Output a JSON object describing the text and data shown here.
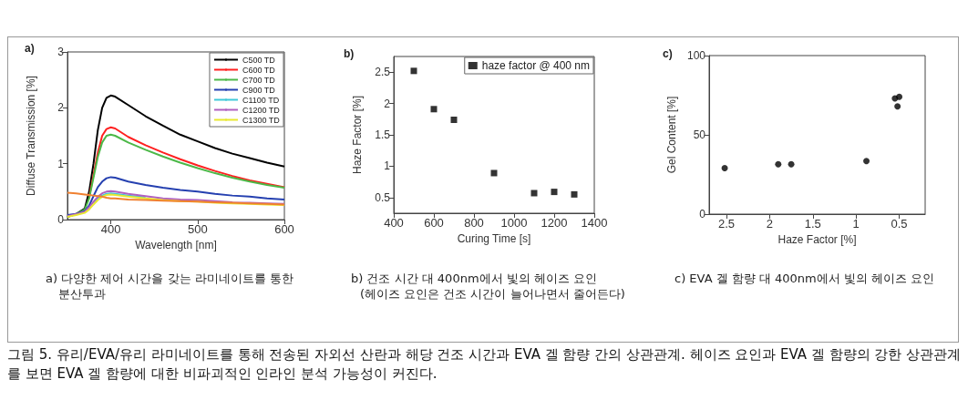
{
  "chart_data": [
    {
      "type": "line",
      "title": "a)",
      "xlabel": "Wavelength [nm]",
      "ylabel": "Diffuse Transmission [%]",
      "x": [
        350,
        360,
        370,
        375,
        380,
        385,
        390,
        395,
        400,
        405,
        420,
        440,
        460,
        480,
        500,
        520,
        540,
        560,
        580,
        600
      ],
      "series": [
        {
          "name": "C500 TD",
          "color": "#000000",
          "values": [
            0.05,
            0.1,
            0.2,
            0.5,
            1.0,
            1.6,
            2.0,
            2.18,
            2.22,
            2.2,
            2.05,
            1.85,
            1.68,
            1.52,
            1.4,
            1.28,
            1.18,
            1.1,
            1.02,
            0.95
          ]
        },
        {
          "name": "C600 TD",
          "color": "#ff2020",
          "values": [
            null,
            null,
            null,
            0.4,
            0.8,
            1.2,
            1.5,
            1.62,
            1.65,
            1.63,
            1.48,
            1.33,
            1.2,
            1.08,
            0.97,
            0.87,
            0.78,
            0.7,
            0.64,
            0.58
          ]
        },
        {
          "name": "C700 TD",
          "color": "#4cb848",
          "values": [
            0.05,
            0.1,
            0.18,
            0.38,
            0.75,
            1.12,
            1.38,
            1.5,
            1.52,
            1.5,
            1.38,
            1.25,
            1.13,
            1.02,
            0.92,
            0.83,
            0.75,
            0.68,
            0.62,
            0.57
          ]
        },
        {
          "name": "C900 TD",
          "color": "#2540b0",
          "values": [
            0.08,
            0.1,
            0.15,
            0.25,
            0.42,
            0.58,
            0.68,
            0.74,
            0.76,
            0.75,
            0.68,
            0.62,
            0.57,
            0.53,
            0.5,
            0.46,
            0.43,
            0.41,
            0.38,
            0.36
          ]
        },
        {
          "name": "C1100 TD",
          "color": "#40c8d8",
          "values": [
            null,
            null,
            null,
            null,
            0.3,
            0.38,
            0.43,
            0.46,
            0.47,
            0.46,
            0.43,
            0.4,
            null,
            null,
            null,
            null,
            null,
            null,
            null,
            null
          ]
        },
        {
          "name": "C1200 TD",
          "color": "#b060c0",
          "values": [
            0.06,
            0.1,
            0.14,
            0.22,
            0.32,
            0.41,
            0.47,
            0.5,
            0.51,
            0.5,
            0.46,
            0.42,
            0.38,
            0.36,
            0.35,
            0.33,
            0.31,
            0.3,
            0.29,
            0.28
          ]
        },
        {
          "name": "C1300 TD",
          "color": "#e8e830",
          "values": [
            0.05,
            0.08,
            0.12,
            0.18,
            0.27,
            0.35,
            0.41,
            0.44,
            0.45,
            0.44,
            0.41,
            0.38,
            0.35,
            0.33,
            0.32,
            0.3,
            0.29,
            0.28,
            0.27,
            0.26
          ]
        },
        {
          "color": "#f08030",
          "values": [
            0.48,
            0.47,
            0.45,
            0.44,
            0.43,
            0.42,
            0.41,
            0.39,
            0.38,
            0.38,
            0.36,
            0.35,
            0.34,
            0.33,
            0.32,
            0.31,
            0.3,
            0.29,
            0.28,
            0.27
          ]
        }
      ],
      "xlim": [
        350,
        600
      ],
      "xticks": [
        400,
        500,
        600
      ],
      "ylim": [
        0,
        3
      ],
      "yticks": [
        0,
        1,
        2,
        3
      ],
      "legend": "top right",
      "marker": "none",
      "line_style": "solid",
      "grid": false,
      "annotations": [
        "a) 다양한 제어 시간을 갖는 라미네이트를 통한",
        "분산투과"
      ]
    },
    {
      "type": "scatter",
      "title": "b)",
      "xlabel": "Curing Time [s]",
      "ylabel": "Haze Factor [%]",
      "x": [
        500,
        600,
        700,
        900,
        1100,
        1200,
        1300
      ],
      "series": [
        {
          "name": "haze factor @ 400 nm",
          "color": "#000000",
          "values": [
            2.52,
            1.91,
            1.74,
            0.89,
            0.57,
            0.59,
            0.55
          ]
        }
      ],
      "xlim": [
        400,
        1400
      ],
      "xticks": [
        400,
        600,
        800,
        1000,
        1200,
        1400
      ],
      "ylim": [
        0.25,
        2.75
      ],
      "yticks": [
        0.5,
        1.0,
        1.5,
        2.0,
        2.5
      ],
      "legend": "top right",
      "marker": "square",
      "grid": false,
      "annotations": [
        "b) 건조 시간 대 400nm에서 빛의 헤이즈 요인",
        "(헤이즈 요인은 건조 시간이 늘어나면서 줄어든다)"
      ]
    },
    {
      "type": "scatter",
      "title": "c)",
      "xlabel": "Haze Factor [%]",
      "ylabel": "Gel Content [%]",
      "x": [
        2.52,
        1.9,
        1.75,
        0.88,
        0.55,
        0.5,
        0.52
      ],
      "series": [
        {
          "color": "#000000",
          "values": [
            29,
            31.5,
            31.5,
            33.5,
            73,
            74,
            68
          ]
        }
      ],
      "xlim": [
        2.7,
        0.2
      ],
      "xticks": [
        2.5,
        2.0,
        1.5,
        1.0,
        0.5
      ],
      "ylim": [
        0,
        100
      ],
      "yticks": [
        0,
        50,
        100
      ],
      "marker": "circle",
      "grid": false,
      "annotations": [
        "c) EVA 겔 함량 대 400nm에서 빛의 헤이즈 요인"
      ]
    },
    {
      "type": "other",
      "annotations": [
        "그림 5. 유리/EVA/유리 라미네이트를 통해 전송된 자외선 산란과 해당 건조 시간과 EVA 겔 함량 간의 상관관계. 헤이즈 요인과 EVA 겔 함량의 강한 상관관계를 보면 EVA 겔 함량에 대한 비파괴적인 인라인 분석 가능성이 커진다."
      ]
    }
  ]
}
